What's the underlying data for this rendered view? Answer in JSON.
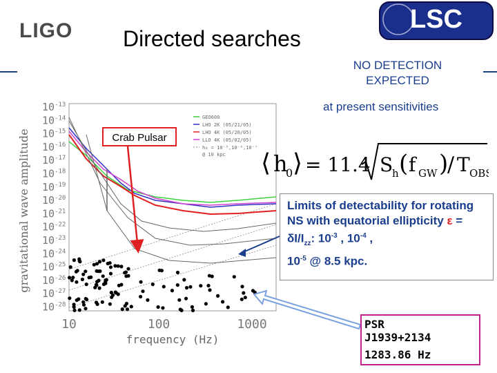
{
  "header": {
    "logo_text": "LIGO",
    "title": "Directed searches",
    "lsc_logo_text": "LSC"
  },
  "notes": {
    "no_detection": "NO DETECTION EXPECTED",
    "sensitivities": "at present sensitivities"
  },
  "plot": {
    "ylabel": "gravitational wave amplitude",
    "xlabel": "frequency (Hz)",
    "y_exponents": [
      "-13",
      "-14",
      "-15",
      "-16",
      "-17",
      "-18",
      "-19",
      "-20",
      "-21",
      "-22",
      "-23",
      "-24",
      "-25",
      "-26",
      "-27",
      "-28"
    ],
    "x_ticks": [
      "10",
      "100",
      "1000"
    ],
    "legend": [
      "GEO600",
      "LHO 2K (05/21/05)",
      "LHO 4K (05/20/05)",
      "LLO 4K (05/02/05)",
      "h₀ = 10⁻⁵,10⁻⁶,10⁻⁷"
    ],
    "legend_sub": "@ 10 kpc",
    "series_colors": {
      "geo": "#3cd23c",
      "lho2k": "#3030c8",
      "lho4k": "#e02020",
      "llo4k": "#d040d0",
      "pink": "#ff80c0"
    }
  },
  "crab_label": "Crab Pulsar",
  "formula": {
    "h": "h",
    "sub0": "0",
    "equals": "= 11.4",
    "Sh": "S",
    "h_sub": "h",
    "f": "f",
    "GW": "GW",
    "T": "T",
    "OBS": "OBS"
  },
  "limits": {
    "line1": "Limits of detectability for rotating NS with equatorial ellipticity",
    "eps": "ε",
    "eq_part": " = δI/I",
    "zz": "zz",
    "colon": ": 10",
    "e1": "-3",
    "sep1": " , 10",
    "e2": "-4",
    "sep2": " ,",
    "ten": "10",
    "e3": "-5",
    "tail": " @ 8.5 kpc."
  },
  "psr": {
    "name_line1": "PSR",
    "name_line2": "J1939+2134",
    "freq": "1283.86 Hz"
  }
}
